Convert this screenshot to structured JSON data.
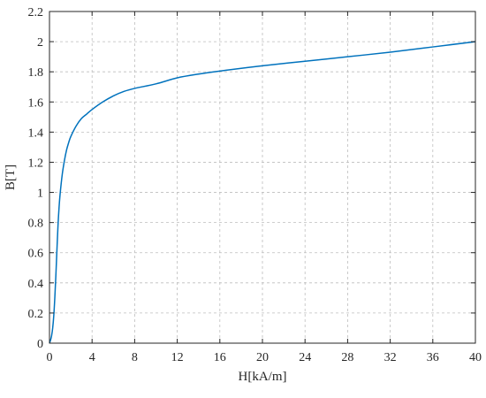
{
  "chart_data": {
    "type": "line",
    "title": "",
    "xlabel": "H[kA/m]",
    "ylabel": "B[T]",
    "xlim": [
      0,
      40
    ],
    "ylim": [
      0,
      2.2
    ],
    "x_ticks": [
      0,
      4,
      8,
      12,
      16,
      20,
      24,
      28,
      32,
      36,
      40
    ],
    "y_ticks": [
      0,
      0.2,
      0.4,
      0.6,
      0.8,
      1,
      1.2,
      1.4,
      1.6,
      1.8,
      2,
      2.2
    ],
    "x_tick_labels": [
      "0",
      "4",
      "8",
      "12",
      "16",
      "20",
      "24",
      "28",
      "32",
      "36",
      "40"
    ],
    "y_tick_labels": [
      "0",
      "0.2",
      "0.4",
      "0.6",
      "0.8",
      "1",
      "1.2",
      "1.4",
      "1.6",
      "1.8",
      "2",
      "2.2"
    ],
    "grid": true,
    "grid_style": "dashed",
    "line_color": "#0072BD",
    "series": [
      {
        "name": "",
        "x": [
          0,
          0.1,
          0.2,
          0.3,
          0.4,
          0.5,
          0.6,
          0.7,
          0.8,
          0.9,
          1.0,
          1.2,
          1.4,
          1.6,
          1.8,
          2.0,
          2.5,
          3.0,
          3.5,
          4.0,
          5.0,
          6.0,
          7.0,
          8.0,
          10.0,
          12.0,
          14.0,
          16.0,
          20.0,
          24.0,
          28.0,
          32.0,
          36.0,
          40.0
        ],
        "y": [
          0,
          0.02,
          0.05,
          0.1,
          0.18,
          0.3,
          0.45,
          0.62,
          0.78,
          0.9,
          0.99,
          1.12,
          1.21,
          1.28,
          1.33,
          1.37,
          1.44,
          1.49,
          1.52,
          1.55,
          1.6,
          1.64,
          1.67,
          1.69,
          1.72,
          1.76,
          1.785,
          1.805,
          1.84,
          1.87,
          1.9,
          1.93,
          1.965,
          2.0
        ]
      }
    ]
  }
}
